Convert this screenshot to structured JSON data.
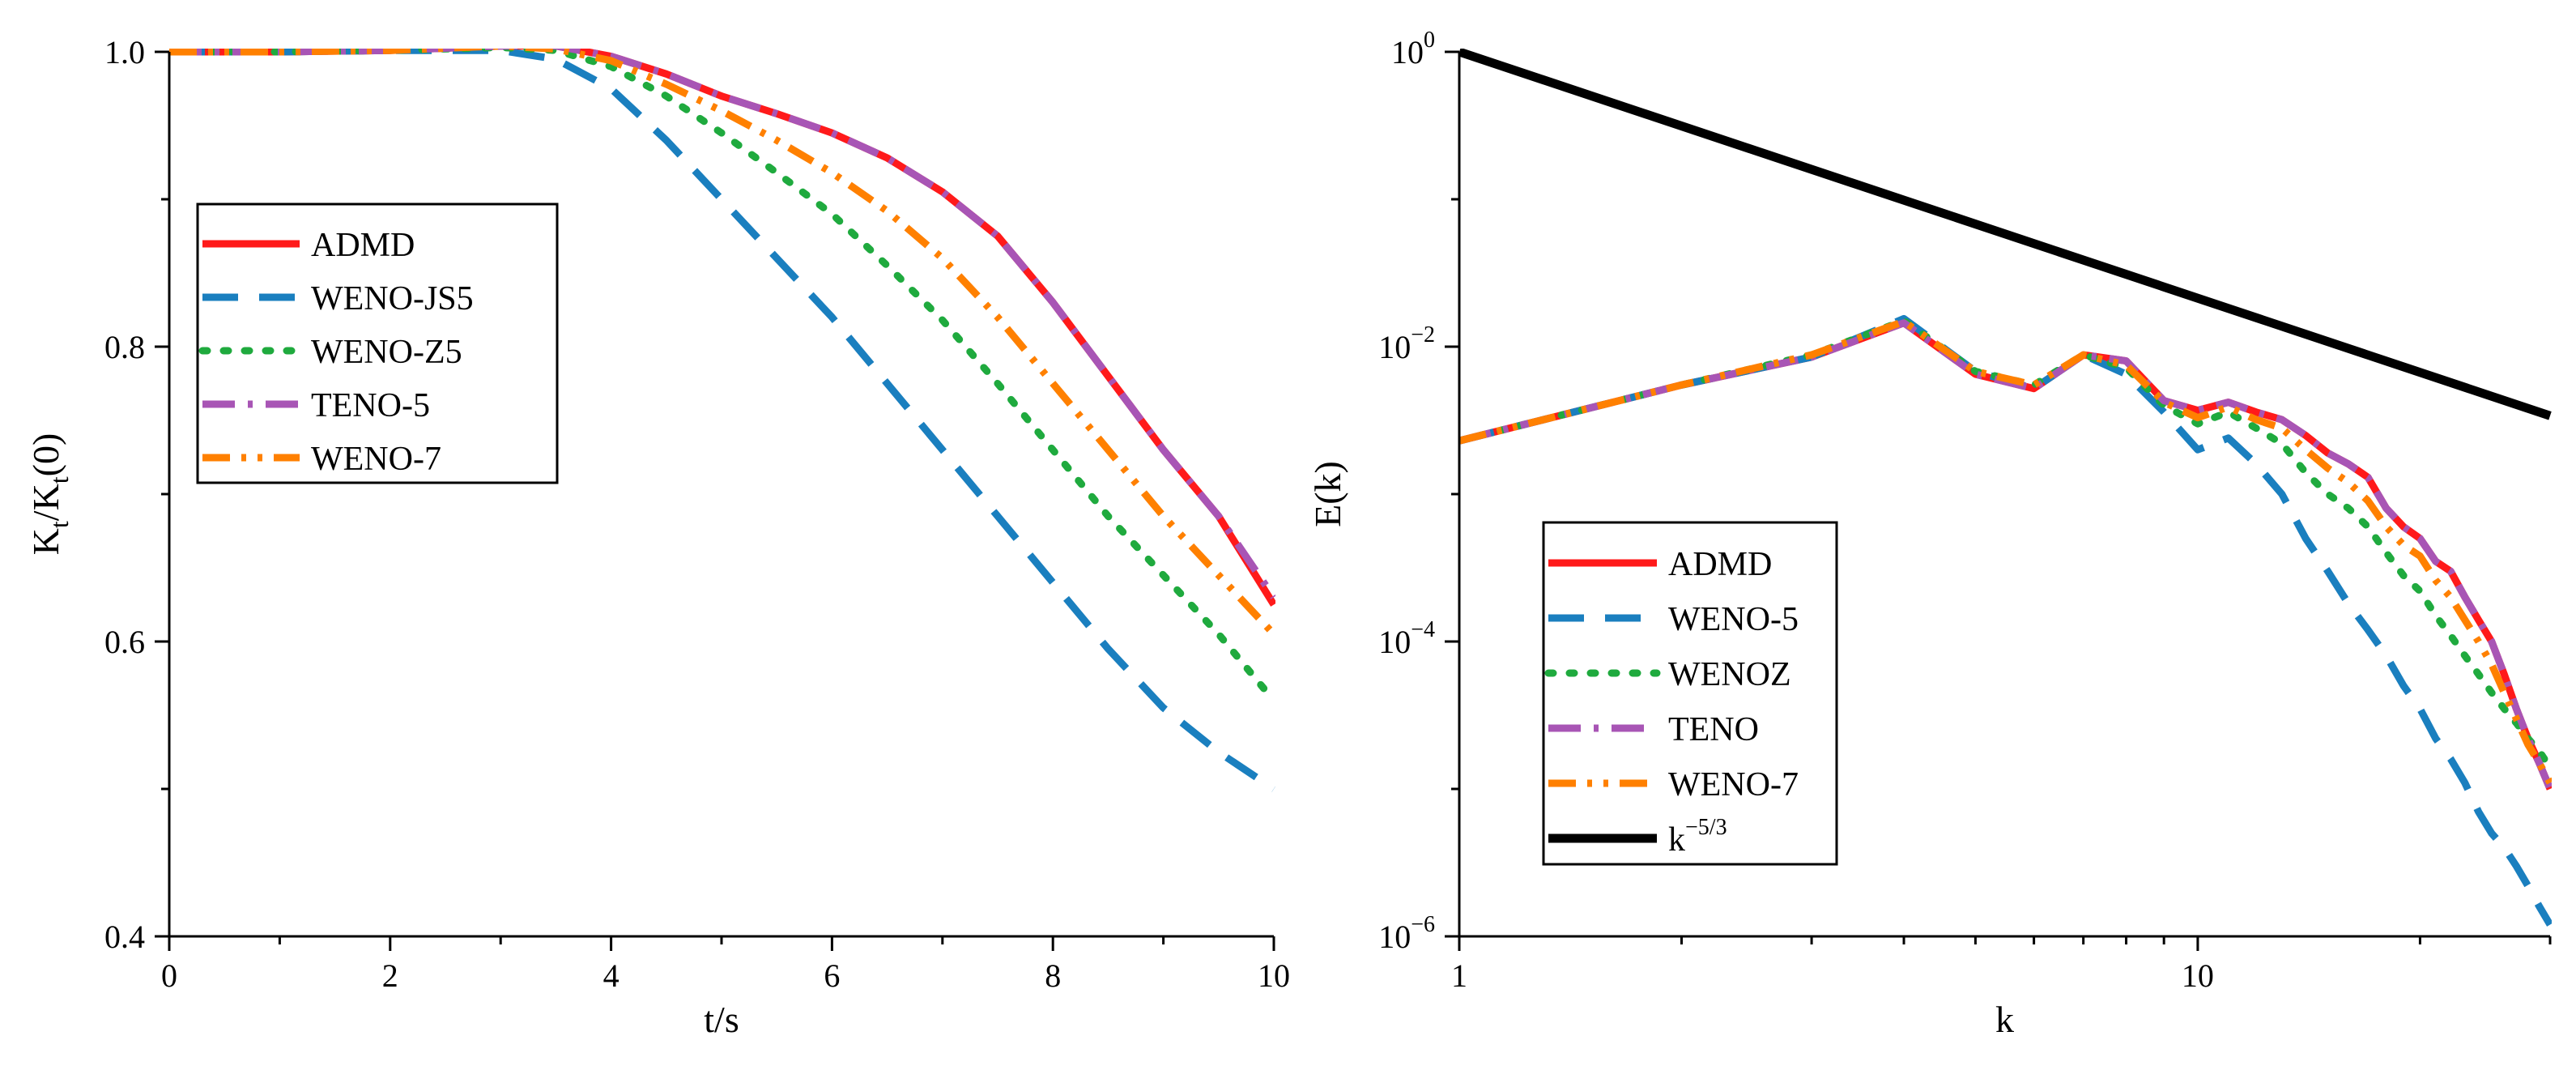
{
  "colors": {
    "ADMD": "#ff1a1a",
    "WENO5": "#1a7fbf",
    "WENOZ": "#1faa3e",
    "TENO": "#a855b5",
    "WENO7": "#ff8000",
    "ref": "#000000"
  },
  "chart_data": [
    {
      "type": "line",
      "xlabel": "t/s",
      "ylabel": {
        "main": "K",
        "sub1": "t",
        "mid": "/K",
        "sub2": "t",
        "tail": "(0)"
      },
      "xlim": [
        0,
        10
      ],
      "ylim": [
        0.4,
        1.0
      ],
      "xticks": [
        0,
        2,
        4,
        6,
        8,
        10
      ],
      "xtick_labels": [
        "0",
        "2",
        "4",
        "6",
        "8",
        "10"
      ],
      "yticks": [
        0.4,
        0.6,
        0.8,
        1.0
      ],
      "ytick_labels": [
        "0.4",
        "0.6",
        "0.8",
        "1.0"
      ],
      "legend_position": "center-left",
      "series": [
        {
          "name": "ADMD",
          "style": "solid",
          "color_key": "ADMD",
          "x": [
            0,
            1,
            2,
            3,
            3.5,
            4,
            4.5,
            5,
            5.5,
            6,
            6.5,
            7,
            7.5,
            8,
            8.5,
            9,
            9.5,
            10
          ],
          "y": [
            1.0,
            1.0,
            1.001,
            1.004,
            1.004,
            0.997,
            0.985,
            0.97,
            0.958,
            0.945,
            0.928,
            0.905,
            0.875,
            0.83,
            0.78,
            0.73,
            0.685,
            0.625
          ]
        },
        {
          "name": "WENO-JS5",
          "style": "dash",
          "color_key": "WENO5",
          "x": [
            0,
            1,
            2,
            3,
            3.5,
            4,
            4.5,
            5,
            5.5,
            6,
            6.5,
            7,
            7.5,
            8,
            8.5,
            9,
            9.5,
            10
          ],
          "y": [
            1.0,
            1.0,
            1.001,
            1.001,
            0.995,
            0.975,
            0.94,
            0.9,
            0.86,
            0.82,
            0.775,
            0.73,
            0.685,
            0.64,
            0.595,
            0.555,
            0.525,
            0.5
          ]
        },
        {
          "name": "WENO-Z5",
          "style": "dot",
          "color_key": "WENOZ",
          "x": [
            0,
            1,
            2,
            3,
            3.5,
            4,
            4.5,
            5,
            5.5,
            6,
            6.5,
            7,
            7.5,
            8,
            8.5,
            9,
            9.5,
            10
          ],
          "y": [
            1.0,
            1.0,
            1.001,
            1.003,
            1.001,
            0.99,
            0.97,
            0.945,
            0.918,
            0.89,
            0.855,
            0.818,
            0.775,
            0.73,
            0.685,
            0.645,
            0.605,
            0.56
          ]
        },
        {
          "name": "TENO-5",
          "style": "dashdot",
          "color_key": "TENO",
          "x": [
            0,
            1,
            2,
            3,
            3.5,
            4,
            4.5,
            5,
            5.5,
            6,
            6.5,
            7,
            7.5,
            8,
            8.5,
            9,
            9.5,
            10
          ],
          "y": [
            1.0,
            1.0,
            1.001,
            1.004,
            1.004,
            0.997,
            0.985,
            0.97,
            0.958,
            0.945,
            0.928,
            0.905,
            0.875,
            0.83,
            0.78,
            0.73,
            0.685,
            0.63
          ]
        },
        {
          "name": "WENO-7",
          "style": "dashdotdot",
          "color_key": "WENO7",
          "x": [
            0,
            1,
            2,
            3,
            3.5,
            4,
            4.5,
            5,
            5.5,
            6,
            6.5,
            7,
            7.5,
            8,
            8.5,
            9,
            9.5,
            10
          ],
          "y": [
            1.0,
            1.0,
            1.001,
            1.004,
            1.002,
            0.994,
            0.978,
            0.96,
            0.94,
            0.918,
            0.892,
            0.86,
            0.82,
            0.775,
            0.73,
            0.685,
            0.645,
            0.605
          ]
        }
      ]
    },
    {
      "type": "line",
      "xscale": "log",
      "yscale": "log",
      "xlabel": "k",
      "ylabel": "E(k)",
      "xlim": [
        1,
        30
      ],
      "ylim": [
        1e-06,
        1
      ],
      "xticks": [
        1,
        10
      ],
      "xtick_labels": [
        "1",
        "10"
      ],
      "yticks": [
        1e-06,
        0.0001,
        0.01,
        1
      ],
      "ytick_labels": [
        {
          "base": "10",
          "exp": "−6"
        },
        {
          "base": "10",
          "exp": "−4"
        },
        {
          "base": "10",
          "exp": "−2"
        },
        {
          "base": "10",
          "exp": "0"
        }
      ],
      "legend_position": "lower-left",
      "series": [
        {
          "name": "ADMD",
          "style": "solid",
          "color_key": "ADMD",
          "x": [
            1,
            2,
            3,
            4,
            5,
            6,
            7,
            8,
            9,
            10,
            11,
            12,
            13,
            14,
            15,
            16,
            17,
            18,
            19,
            20,
            21,
            22,
            23,
            24,
            25,
            26,
            27,
            28,
            29,
            30
          ],
          "y": [
            0.0023,
            0.0055,
            0.0085,
            0.0145,
            0.0065,
            0.0052,
            0.0088,
            0.008,
            0.0043,
            0.0037,
            0.0042,
            0.0036,
            0.0032,
            0.0025,
            0.0019,
            0.0016,
            0.0013,
            0.0008,
            0.0006,
            0.0005,
            0.00035,
            0.0003,
            0.0002,
            0.00014,
            0.0001,
            6e-05,
            3.5e-05,
            2.2e-05,
            1.5e-05,
            1e-05
          ]
        },
        {
          "name": "WENO-5",
          "style": "dash",
          "color_key": "WENO5",
          "x": [
            1,
            2,
            3,
            4,
            5,
            6,
            7,
            8,
            9,
            10,
            11,
            12,
            13,
            14,
            15,
            16,
            17,
            18,
            19,
            20,
            21,
            22,
            23,
            24,
            25,
            26,
            27,
            28,
            29,
            30
          ],
          "y": [
            0.0023,
            0.0055,
            0.0085,
            0.0155,
            0.0068,
            0.0052,
            0.0088,
            0.0065,
            0.0036,
            0.002,
            0.0024,
            0.0016,
            0.001,
            0.0005,
            0.0003,
            0.00018,
            0.00012,
            8e-05,
            5e-05,
            3.5e-05,
            2.2e-05,
            1.6e-05,
            1.1e-05,
            7e-06,
            5e-06,
            4e-06,
            3e-06,
            2.2e-06,
            1.6e-06,
            1.2e-06
          ]
        },
        {
          "name": "WENOZ",
          "style": "dot",
          "color_key": "WENOZ",
          "x": [
            1,
            2,
            3,
            4,
            5,
            6,
            7,
            8,
            9,
            10,
            11,
            12,
            13,
            14,
            15,
            16,
            17,
            18,
            19,
            20,
            21,
            22,
            23,
            24,
            25,
            26,
            27,
            28,
            29,
            30
          ],
          "y": [
            0.0023,
            0.0055,
            0.0088,
            0.015,
            0.0068,
            0.0055,
            0.0088,
            0.0072,
            0.004,
            0.003,
            0.0036,
            0.0028,
            0.0022,
            0.0014,
            0.001,
            0.0008,
            0.0006,
            0.0004,
            0.00028,
            0.00022,
            0.00015,
            0.00011,
            8e-05,
            6e-05,
            4.5e-05,
            3.5e-05,
            2.8e-05,
            2.2e-05,
            1.8e-05,
            1.4e-05
          ]
        },
        {
          "name": "TENO",
          "style": "dashdot",
          "color_key": "TENO",
          "x": [
            1,
            2,
            3,
            4,
            5,
            6,
            7,
            8,
            9,
            10,
            11,
            12,
            13,
            14,
            15,
            16,
            17,
            18,
            19,
            20,
            21,
            22,
            23,
            24,
            25,
            26,
            27,
            28,
            29,
            30
          ],
          "y": [
            0.0023,
            0.0055,
            0.0085,
            0.0145,
            0.0065,
            0.0052,
            0.0088,
            0.008,
            0.0043,
            0.0037,
            0.0042,
            0.0036,
            0.0032,
            0.0025,
            0.0019,
            0.0016,
            0.0013,
            0.0008,
            0.0006,
            0.0005,
            0.00035,
            0.0003,
            0.0002,
            0.00014,
            0.0001,
            6e-05,
            3.5e-05,
            2.2e-05,
            1.5e-05,
            1e-05
          ]
        },
        {
          "name": "WENO-7",
          "style": "dashdotdot",
          "color_key": "WENO7",
          "x": [
            1,
            2,
            3,
            4,
            5,
            6,
            7,
            8,
            9,
            10,
            11,
            12,
            13,
            14,
            15,
            16,
            17,
            18,
            19,
            20,
            21,
            22,
            23,
            24,
            25,
            26,
            27,
            28,
            29,
            30
          ],
          "y": [
            0.0023,
            0.0055,
            0.0088,
            0.0148,
            0.0068,
            0.0055,
            0.0088,
            0.0075,
            0.0042,
            0.0033,
            0.0039,
            0.0032,
            0.0028,
            0.002,
            0.0015,
            0.0012,
            0.0009,
            0.0006,
            0.00045,
            0.00038,
            0.00026,
            0.0002,
            0.00014,
            0.0001,
            7e-05,
            4.5e-05,
            3e-05,
            2e-05,
            1.5e-05,
            1.1e-05
          ]
        },
        {
          "name": "k−5/3",
          "label_base": "k",
          "label_exp": "−5/3",
          "style": "solid",
          "color_key": "ref",
          "x": [
            1,
            30
          ],
          "y": [
            1,
            0.0034
          ]
        }
      ]
    }
  ]
}
